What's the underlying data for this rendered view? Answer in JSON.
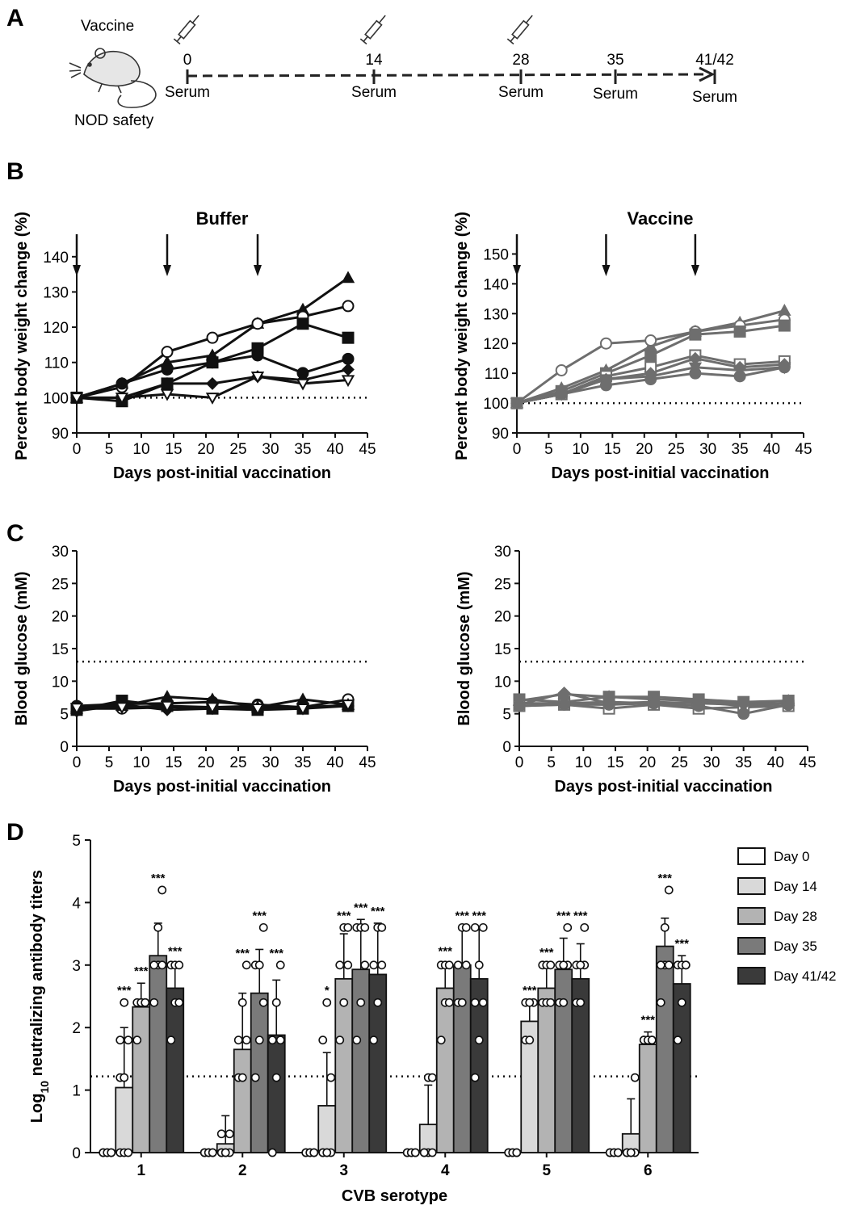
{
  "panel_letters": [
    "A",
    "B",
    "C",
    "D"
  ],
  "timeline": {
    "vaccine_label": "Vaccine",
    "safety_label": "NOD safety",
    "days": [
      "0",
      "14",
      "28",
      "35",
      "41/42"
    ],
    "serum_label": "Serum",
    "injection_days": [
      "0",
      "14",
      "28"
    ],
    "icons": [
      "syringe-icon",
      "mouse-icon"
    ]
  },
  "chart_data": [
    {
      "id": "weight_buffer",
      "type": "line",
      "title": "Buffer",
      "xlabel": "Days post-initial vaccination",
      "ylabel": "Percent body weight change (%)",
      "xlim": [
        0,
        45
      ],
      "ylim": [
        90,
        145
      ],
      "xticks": [
        "0",
        "5",
        "10",
        "15",
        "20",
        "25",
        "30",
        "35",
        "40",
        "45"
      ],
      "yticks": [
        "90",
        "100",
        "110",
        "120",
        "130",
        "140"
      ],
      "reference_line": 100,
      "injection_arrows_days": [
        0,
        14,
        28
      ],
      "color": "#111111",
      "x": [
        0,
        7,
        14,
        21,
        28,
        35,
        42
      ],
      "series": [
        {
          "marker": "triangle",
          "values": [
            100,
            104,
            110,
            112,
            121,
            125,
            134
          ]
        },
        {
          "marker": "open-circle",
          "values": [
            100,
            103,
            113,
            117,
            121,
            123,
            126
          ]
        },
        {
          "marker": "square",
          "values": [
            100,
            99,
            104,
            110,
            114,
            121,
            117
          ]
        },
        {
          "marker": "circle",
          "values": [
            100,
            104,
            108,
            110,
            112,
            107,
            111
          ]
        },
        {
          "marker": "diamond",
          "values": [
            100,
            100,
            104,
            104,
            106,
            105,
            108
          ]
        },
        {
          "marker": "open-triangle-down",
          "values": [
            100,
            100,
            101,
            100,
            106,
            104,
            105
          ]
        }
      ]
    },
    {
      "id": "weight_vaccine",
      "type": "line",
      "title": "Vaccine",
      "xlabel": "Days post-initial vaccination",
      "ylabel": "Percent body weight change (%)",
      "xlim": [
        0,
        45
      ],
      "ylim": [
        90,
        155
      ],
      "xticks": [
        "0",
        "5",
        "10",
        "15",
        "20",
        "25",
        "30",
        "35",
        "40",
        "45"
      ],
      "yticks": [
        "90",
        "100",
        "110",
        "120",
        "130",
        "140",
        "150"
      ],
      "reference_line": 100,
      "injection_arrows_days": [
        0,
        14,
        28
      ],
      "color": "#6e6e6e",
      "x": [
        0,
        7,
        14,
        21,
        28,
        35,
        42
      ],
      "series": [
        {
          "marker": "triangle",
          "values": [
            100,
            105,
            111,
            119,
            124,
            127,
            131
          ]
        },
        {
          "marker": "open-circle",
          "values": [
            100,
            111,
            120,
            121,
            124,
            126,
            128
          ]
        },
        {
          "marker": "square",
          "values": [
            100,
            104,
            110,
            116,
            123,
            124,
            126
          ]
        },
        {
          "marker": "open-square",
          "values": [
            100,
            103,
            109,
            112,
            116,
            113,
            114
          ]
        },
        {
          "marker": "diamond",
          "values": [
            100,
            103,
            108,
            110,
            115,
            112,
            113
          ]
        },
        {
          "marker": "triangle-down",
          "values": [
            100,
            103,
            108,
            109,
            112,
            111,
            112
          ]
        },
        {
          "marker": "circle",
          "values": [
            100,
            103,
            106,
            108,
            110,
            109,
            112
          ]
        }
      ]
    },
    {
      "id": "glucose_buffer",
      "type": "line",
      "title": "",
      "xlabel": "Days post-initial vaccination",
      "ylabel": "Blood glucose (mM)",
      "xlim": [
        0,
        45
      ],
      "ylim": [
        0,
        30
      ],
      "xticks": [
        "0",
        "5",
        "10",
        "15",
        "20",
        "25",
        "30",
        "35",
        "40",
        "45"
      ],
      "yticks": [
        "0",
        "5",
        "10",
        "15",
        "20",
        "25",
        "30"
      ],
      "reference_line": 13,
      "color": "#111111",
      "x": [
        0,
        7,
        14,
        21,
        28,
        35,
        42
      ],
      "series": [
        {
          "marker": "circle",
          "values": [
            6.2,
            6.5,
            6.6,
            6.8,
            6.4,
            6.0,
            6.3
          ]
        },
        {
          "marker": "open-circle",
          "values": [
            5.8,
            5.8,
            6.0,
            6.0,
            6.2,
            6.0,
            7.2
          ]
        },
        {
          "marker": "square",
          "values": [
            5.6,
            7.0,
            6.2,
            5.8,
            5.6,
            5.8,
            6.2
          ]
        },
        {
          "marker": "triangle",
          "values": [
            5.8,
            6.2,
            7.6,
            7.2,
            6.0,
            7.2,
            6.4
          ]
        },
        {
          "marker": "diamond",
          "values": [
            5.4,
            6.4,
            5.6,
            5.8,
            5.8,
            6.0,
            6.2
          ]
        },
        {
          "marker": "open-triangle-down",
          "values": [
            5.9,
            6.0,
            6.2,
            6.0,
            5.8,
            5.8,
            6.4
          ]
        }
      ]
    },
    {
      "id": "glucose_vaccine",
      "type": "line",
      "title": "",
      "xlabel": "Days post-initial vaccination",
      "ylabel": "Blood glucose (mM)",
      "xlim": [
        0,
        45
      ],
      "ylim": [
        0,
        30
      ],
      "xticks": [
        "0",
        "5",
        "10",
        "15",
        "20",
        "25",
        "30",
        "35",
        "40",
        "45"
      ],
      "yticks": [
        "0",
        "5",
        "10",
        "15",
        "20",
        "25",
        "30"
      ],
      "reference_line": 13,
      "color": "#6e6e6e",
      "x": [
        0,
        7,
        14,
        21,
        28,
        35,
        42
      ],
      "series": [
        {
          "marker": "triangle",
          "values": [
            7.0,
            8.0,
            7.6,
            7.2,
            7.0,
            6.6,
            7.0
          ]
        },
        {
          "marker": "open-circle",
          "values": [
            6.6,
            6.6,
            6.8,
            6.6,
            6.8,
            6.2,
            6.6
          ]
        },
        {
          "marker": "square",
          "values": [
            7.2,
            6.8,
            7.6,
            7.6,
            7.2,
            6.8,
            7.0
          ]
        },
        {
          "marker": "open-square",
          "values": [
            6.2,
            6.4,
            5.8,
            6.4,
            5.8,
            6.0,
            6.2
          ]
        },
        {
          "marker": "diamond",
          "values": [
            6.4,
            8.2,
            6.6,
            6.8,
            6.6,
            6.4,
            6.6
          ]
        },
        {
          "marker": "circle",
          "values": [
            6.2,
            6.4,
            6.4,
            6.6,
            6.2,
            5.0,
            6.4
          ]
        }
      ]
    },
    {
      "id": "neutralizing_titers",
      "type": "bar",
      "title": "",
      "xlabel": "CVB serotype",
      "ylabel": "Log10 neutralizing antibody titers",
      "ylabel_parts": [
        "Log",
        "10",
        " neutralizing antibody titers"
      ],
      "ylim": [
        0,
        5
      ],
      "yticks": [
        "0",
        "1",
        "2",
        "3",
        "4",
        "5"
      ],
      "reference_line": 1.22,
      "categories": [
        "1",
        "2",
        "3",
        "4",
        "5",
        "6"
      ],
      "series": [
        {
          "name": "Day 0",
          "color": "#ffffff",
          "values": [
            0,
            0,
            0,
            0,
            0,
            0
          ],
          "errors": [
            0,
            0,
            0,
            0,
            0,
            0
          ],
          "significance": [
            "",
            "",
            "",
            "",
            "",
            ""
          ]
        },
        {
          "name": "Day 14",
          "color": "#d9d9d9",
          "values": [
            1.04,
            0.14,
            0.75,
            0.45,
            2.1,
            0.3
          ],
          "errors": [
            0.96,
            0.45,
            0.85,
            0.63,
            0.3,
            0.56
          ],
          "significance": [
            "***",
            "",
            "*",
            "",
            "***",
            ""
          ]
        },
        {
          "name": "Day 28",
          "color": "#b3b3b3",
          "values": [
            2.33,
            1.65,
            2.78,
            2.63,
            2.63,
            1.73
          ],
          "errors": [
            0.38,
            0.9,
            0.72,
            0.4,
            0.38,
            0.2
          ],
          "significance": [
            "***",
            "***",
            "***",
            "***",
            "***",
            "***"
          ]
        },
        {
          "name": "Day 35",
          "color": "#7a7a7a",
          "values": [
            3.15,
            2.55,
            2.93,
            3.0,
            2.93,
            3.3
          ],
          "errors": [
            0.52,
            0.7,
            0.8,
            0.6,
            0.5,
            0.45
          ],
          "significance": [
            "***",
            "***",
            "***",
            "***",
            "***",
            "***"
          ]
        },
        {
          "name": "Day 41/42",
          "color": "#3a3a3a",
          "values": [
            2.63,
            1.88,
            2.85,
            2.78,
            2.78,
            2.7
          ],
          "errors": [
            0.4,
            0.88,
            0.82,
            0.82,
            0.56,
            0.45
          ],
          "significance": [
            "***",
            "***",
            "***",
            "***",
            "***",
            "***"
          ]
        }
      ],
      "points": [
        [
          [
            0,
            0,
            0,
            0,
            0,
            0
          ],
          [
            0,
            0,
            0,
            1.2,
            1.2,
            1.8,
            1.8,
            2.4
          ],
          [
            1.8,
            2.4,
            2.4,
            2.4,
            2.4,
            2.4
          ],
          [
            2.4,
            3.0,
            3.0,
            3.0,
            3.6,
            4.2
          ],
          [
            1.8,
            2.4,
            2.4,
            3.0,
            3.0,
            3.0
          ]
        ],
        [
          [
            0,
            0,
            0,
            0,
            0,
            0
          ],
          [
            0,
            0,
            0,
            0,
            0,
            0.3,
            0.3
          ],
          [
            1.2,
            1.2,
            1.8,
            1.8,
            2.4,
            3.0
          ],
          [
            1.2,
            1.8,
            2.4,
            3.0,
            3.0,
            3.6
          ],
          [
            0,
            1.2,
            1.8,
            1.8,
            2.4,
            3.0
          ]
        ],
        [
          [
            0,
            0,
            0,
            0,
            0,
            0
          ],
          [
            0,
            0,
            0,
            0,
            0,
            1.2,
            1.8,
            2.4
          ],
          [
            1.8,
            2.4,
            3.0,
            3.0,
            3.6,
            3.6
          ],
          [
            1.8,
            2.4,
            3.0,
            3.6,
            3.6,
            3.6
          ],
          [
            1.8,
            2.4,
            3.0,
            3.0,
            3.6,
            3.6
          ]
        ],
        [
          [
            0,
            0,
            0,
            0,
            0,
            0
          ],
          [
            0,
            0,
            0,
            0,
            1.2,
            1.2
          ],
          [
            1.8,
            2.4,
            2.4,
            3.0,
            3.0,
            3.0
          ],
          [
            2.4,
            2.4,
            3.0,
            3.0,
            3.6,
            3.6
          ],
          [
            1.2,
            1.8,
            2.4,
            2.4,
            3.0,
            3.6,
            3.6
          ]
        ],
        [
          [
            0,
            0,
            0,
            0,
            0,
            0
          ],
          [
            1.8,
            1.8,
            2.4,
            2.4,
            2.4
          ],
          [
            2.4,
            2.4,
            2.4,
            3.0,
            3.0,
            3.0
          ],
          [
            2.4,
            2.4,
            3.0,
            3.0,
            3.0,
            3.6
          ],
          [
            2.4,
            2.4,
            3.0,
            3.0,
            3.0,
            3.6
          ]
        ],
        [
          [
            0,
            0,
            0,
            0,
            0,
            0
          ],
          [
            0,
            0,
            0,
            0,
            0,
            1.2
          ],
          [
            1.8,
            1.8,
            1.8,
            1.8,
            1.8,
            1.8
          ],
          [
            2.4,
            3.0,
            3.0,
            3.0,
            3.6,
            4.2
          ],
          [
            1.8,
            2.4,
            3.0,
            3.0,
            3.0,
            3.0
          ]
        ]
      ]
    }
  ]
}
